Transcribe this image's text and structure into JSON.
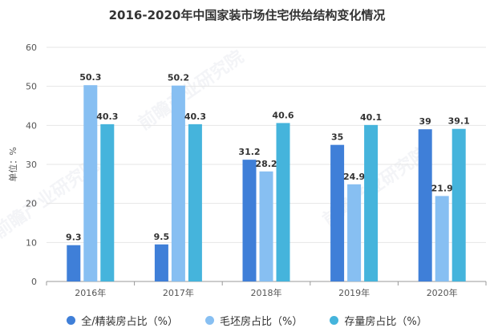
{
  "chart_data": {
    "type": "bar",
    "title": "2016-2020年中国家装市场住宅供给结构变化情况",
    "ylabel": "单位：%",
    "xlabel": "",
    "ylim": [
      0,
      60
    ],
    "yticks": [
      0,
      10,
      20,
      30,
      40,
      50,
      60
    ],
    "categories": [
      "2016年",
      "2017年",
      "2018年",
      "2019年",
      "2020年"
    ],
    "grid": true,
    "legend_position": "bottom",
    "series": [
      {
        "name": "全/精装房占比（%）",
        "color": "#3f7fd8",
        "values": [
          9.3,
          9.5,
          31.2,
          35,
          39
        ]
      },
      {
        "name": "毛坯房占比（%）",
        "color": "#87bff2",
        "values": [
          50.3,
          50.2,
          28.2,
          24.9,
          21.9
        ]
      },
      {
        "name": "存量房占比（%）",
        "color": "#45b4dc",
        "values": [
          40.3,
          40.3,
          40.6,
          40.1,
          39.1
        ]
      }
    ]
  },
  "watermark": "前瞻产业研究院"
}
